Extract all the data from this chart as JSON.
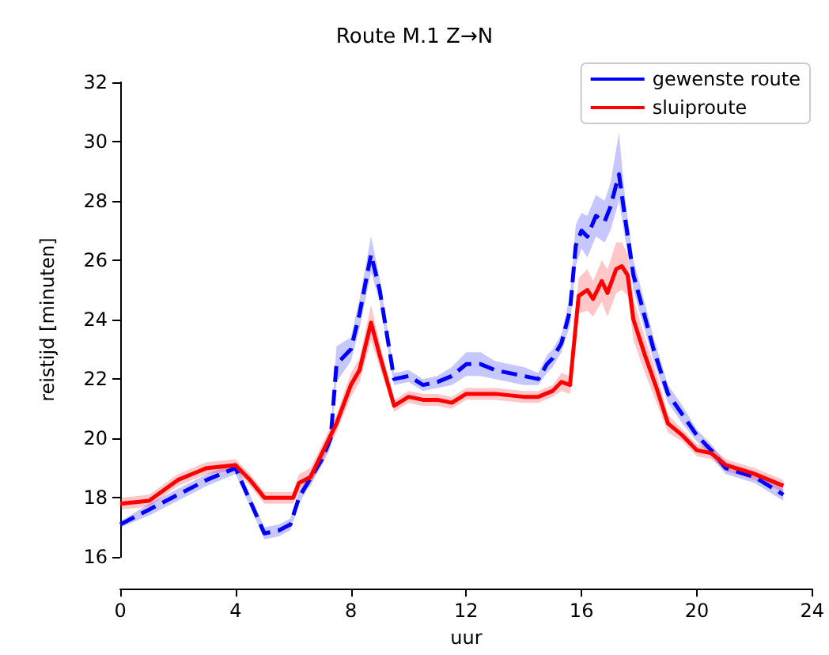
{
  "chart_data": {
    "type": "line",
    "title": "Route M.1 Z→N",
    "xlabel": "uur",
    "ylabel": "reistijd [minuten]",
    "xlim": [
      0,
      24
    ],
    "xticks": [
      0,
      4,
      8,
      12,
      16,
      20,
      24
    ],
    "ylim": [
      16,
      32
    ],
    "yticks": [
      16,
      18,
      20,
      22,
      24,
      26,
      28,
      30,
      32
    ],
    "grid": false,
    "legend": "top right",
    "marker": "none",
    "series": [
      {
        "name": "gewenste route",
        "color": "#0000ff",
        "line_style": "dashed",
        "x": [
          0,
          1,
          2,
          3,
          4,
          5,
          5.5,
          5.9,
          6.2,
          6.5,
          7,
          7.3,
          7.5,
          8,
          8.3,
          8.7,
          9,
          9.5,
          10,
          10.5,
          11,
          11.5,
          12,
          12.5,
          13,
          13.5,
          14,
          14.5,
          14.8,
          15,
          15.3,
          15.6,
          15.8,
          16,
          16.2,
          16.5,
          16.8,
          17,
          17.3,
          17.5,
          17.8,
          18,
          18.5,
          19,
          19.5,
          20,
          20.5,
          21,
          22,
          23
        ],
        "values": [
          17.1,
          17.6,
          18.1,
          18.6,
          19,
          16.8,
          16.9,
          17.1,
          18,
          18.5,
          19.3,
          20,
          22.5,
          23,
          24.2,
          26.2,
          25,
          22,
          22.1,
          21.8,
          21.9,
          22.1,
          22.5,
          22.5,
          22.3,
          22.2,
          22.1,
          22,
          22.5,
          22.7,
          23.2,
          24.3,
          26.5,
          27,
          26.8,
          27.5,
          27.3,
          27.8,
          28.9,
          27.5,
          25.5,
          24.8,
          23,
          21.5,
          20.8,
          20.1,
          19.6,
          19,
          18.7,
          18.1
        ],
        "lower": [
          17,
          17.4,
          17.9,
          18.4,
          18.8,
          16.6,
          16.7,
          16.9,
          17.8,
          18.3,
          19.1,
          19.7,
          21.9,
          22.6,
          23.7,
          25.6,
          24.6,
          21.8,
          21.9,
          21.6,
          21.7,
          21.8,
          22.1,
          22.1,
          22,
          21.9,
          21.8,
          21.8,
          22.2,
          22.4,
          22.9,
          23.8,
          25.8,
          26.4,
          26.1,
          26.8,
          26.6,
          27,
          28,
          26.8,
          25,
          24.3,
          22.6,
          21.2,
          20.5,
          19.9,
          19.4,
          18.8,
          18.5,
          17.9
        ],
        "upper": [
          17.2,
          17.8,
          18.3,
          18.8,
          19.2,
          17,
          17.1,
          17.3,
          18.2,
          18.7,
          19.5,
          20.3,
          23.1,
          23.4,
          24.7,
          26.8,
          25.4,
          22.2,
          22.3,
          22,
          22.1,
          22.4,
          22.9,
          22.9,
          22.6,
          22.5,
          22.4,
          22.2,
          22.8,
          23,
          23.5,
          24.8,
          27.2,
          27.6,
          27.5,
          28.2,
          28,
          28.6,
          30.3,
          28.2,
          26,
          25.3,
          23.4,
          21.8,
          21.1,
          20.3,
          19.8,
          19.2,
          18.9,
          18.3
        ]
      },
      {
        "name": "sluiproute",
        "color": "#ff0000",
        "line_style": "solid",
        "x": [
          0,
          1,
          2,
          3,
          4,
          4.5,
          5,
          6,
          6.2,
          6.6,
          7,
          7.5,
          8,
          8.3,
          8.7,
          9,
          9.5,
          10,
          10.5,
          11,
          11.5,
          12,
          13,
          14,
          14.5,
          15,
          15.3,
          15.6,
          15.9,
          16.2,
          16.4,
          16.7,
          16.9,
          17.2,
          17.4,
          17.6,
          17.8,
          18.2,
          18.6,
          19,
          19.5,
          20,
          20.5,
          21,
          22,
          23
        ],
        "values": [
          17.8,
          17.9,
          18.6,
          19,
          19.1,
          18.6,
          18,
          18,
          18.5,
          18.7,
          19.5,
          20.5,
          21.8,
          22.3,
          23.9,
          22.8,
          21.1,
          21.4,
          21.3,
          21.3,
          21.2,
          21.5,
          21.5,
          21.4,
          21.4,
          21.6,
          21.9,
          21.8,
          24.8,
          25,
          24.7,
          25.3,
          24.9,
          25.7,
          25.8,
          25.5,
          24,
          22.8,
          21.7,
          20.5,
          20.1,
          19.6,
          19.5,
          19.1,
          18.8,
          18.4
        ],
        "lower": [
          17.6,
          17.7,
          18.4,
          18.8,
          18.9,
          18.4,
          17.8,
          17.8,
          18.2,
          18.4,
          19.2,
          20.2,
          21.4,
          21.9,
          23.3,
          22.4,
          20.9,
          21.2,
          21.1,
          21.1,
          21,
          21.3,
          21.3,
          21.2,
          21.2,
          21.4,
          21.6,
          21.5,
          24.2,
          24.3,
          24.1,
          24.6,
          24.1,
          24.9,
          25,
          24.8,
          23.3,
          22.2,
          21.2,
          20.2,
          19.9,
          19.4,
          19.3,
          18.9,
          18.6,
          18.2
        ],
        "upper": [
          18,
          18.1,
          18.8,
          19.2,
          19.3,
          18.8,
          18.2,
          18.2,
          18.8,
          19,
          19.8,
          20.8,
          22.2,
          22.7,
          24.5,
          23.2,
          21.3,
          21.6,
          21.5,
          21.5,
          21.4,
          21.7,
          21.7,
          21.6,
          21.6,
          21.8,
          22.2,
          22.1,
          25.4,
          25.7,
          25.3,
          26,
          25.7,
          26.6,
          26.6,
          26.2,
          24.7,
          23.4,
          22.2,
          20.8,
          20.3,
          19.8,
          19.7,
          19.3,
          19,
          18.6
        ]
      }
    ]
  }
}
